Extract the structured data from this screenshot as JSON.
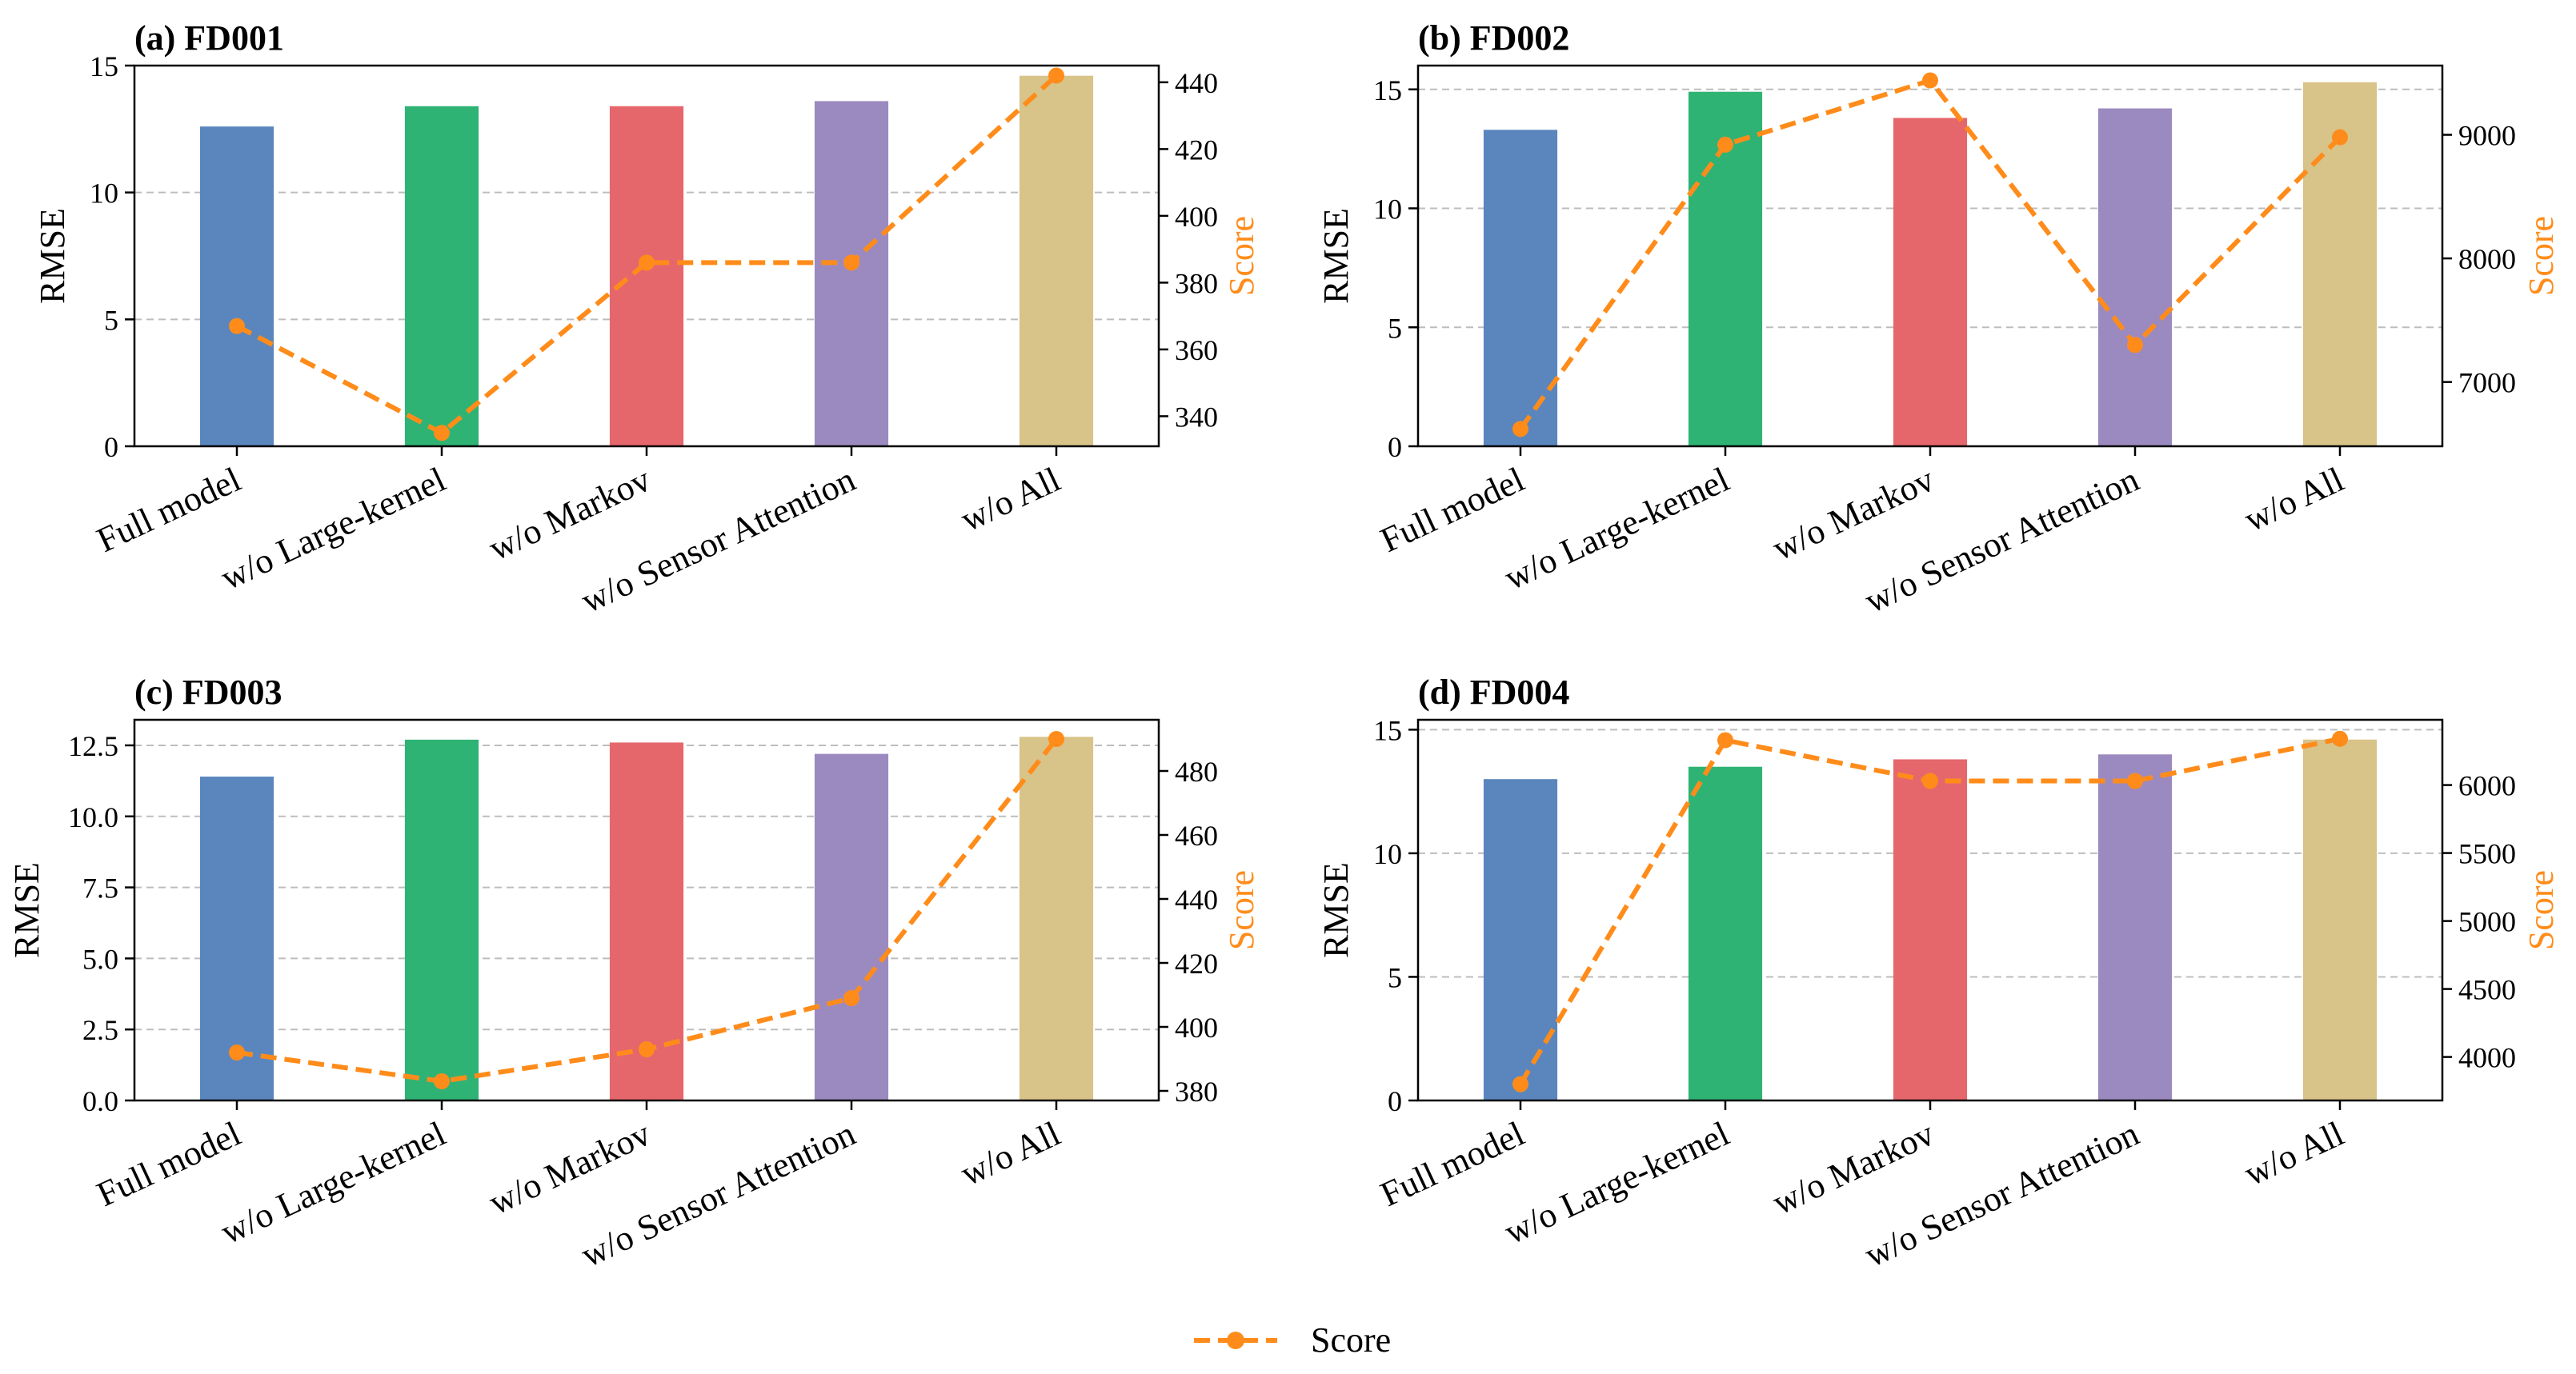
{
  "colors": {
    "bar_colors": [
      "#5A86BD",
      "#2FB374",
      "#E5676C",
      "#9B8AC0",
      "#D8C389"
    ],
    "score_line": "#FF8C1A",
    "grid": "#BDBDBD",
    "axis": "#000000"
  },
  "legend": {
    "label": "Score"
  },
  "chart_data": [
    {
      "type": "bar",
      "title": "(a) FD001",
      "categories": [
        "Full model",
        "w/o Large-kernel",
        "w/o Markov",
        "w/o Sensor Attention",
        "w/o All"
      ],
      "ylabel": "RMSE",
      "y2label": "Score",
      "ylim": [
        0,
        15
      ],
      "yticks": [
        0,
        5,
        10,
        15
      ],
      "ytick_labels": [
        "0",
        "5",
        "10",
        "15"
      ],
      "y2lim": [
        331,
        445
      ],
      "y2ticks": [
        340,
        360,
        380,
        400,
        420,
        440
      ],
      "y2tick_labels": [
        "340",
        "360",
        "380",
        "400",
        "420",
        "440"
      ],
      "series": [
        {
          "name": "RMSE",
          "kind": "bar",
          "values": [
            12.6,
            13.4,
            13.4,
            13.6,
            14.6
          ]
        },
        {
          "name": "Score",
          "kind": "line",
          "axis": "right",
          "values": [
            367,
            335,
            386,
            386,
            442
          ]
        }
      ]
    },
    {
      "type": "bar",
      "title": "(b) FD002",
      "categories": [
        "Full model",
        "w/o Large-kernel",
        "w/o Markov",
        "w/o Sensor Attention",
        "w/o All"
      ],
      "ylabel": "RMSE",
      "y2label": "Score",
      "ylim": [
        0,
        16
      ],
      "yticks": [
        0,
        5,
        10,
        15
      ],
      "ytick_labels": [
        "0",
        "5",
        "10",
        "15"
      ],
      "y2lim": [
        6480,
        9560
      ],
      "y2ticks": [
        7000,
        8000,
        9000
      ],
      "y2tick_labels": [
        "7000",
        "8000",
        "9000"
      ],
      "series": [
        {
          "name": "RMSE",
          "kind": "bar",
          "values": [
            13.3,
            14.9,
            13.8,
            14.2,
            15.3
          ]
        },
        {
          "name": "Score",
          "kind": "line",
          "axis": "right",
          "values": [
            6620,
            8920,
            9440,
            7300,
            8980
          ]
        }
      ]
    },
    {
      "type": "bar",
      "title": "(c) FD003",
      "categories": [
        "Full model",
        "w/o Large-kernel",
        "w/o Markov",
        "w/o Sensor Attention",
        "w/o All"
      ],
      "ylabel": "RMSE",
      "y2label": "Score",
      "ylim": [
        0,
        13.4
      ],
      "yticks": [
        0,
        2.5,
        5,
        7.5,
        10,
        12.5
      ],
      "ytick_labels": [
        "0.0",
        "2.5",
        "5.0",
        "7.5",
        "10.0",
        "12.5"
      ],
      "y2lim": [
        377,
        496
      ],
      "y2ticks": [
        380,
        400,
        420,
        440,
        460,
        480
      ],
      "y2tick_labels": [
        "380",
        "400",
        "420",
        "440",
        "460",
        "480"
      ],
      "series": [
        {
          "name": "RMSE",
          "kind": "bar",
          "values": [
            11.4,
            12.7,
            12.6,
            12.2,
            12.8
          ]
        },
        {
          "name": "Score",
          "kind": "line",
          "axis": "right",
          "values": [
            392,
            383,
            393,
            409,
            490
          ]
        }
      ]
    },
    {
      "type": "bar",
      "title": "(d) FD004",
      "categories": [
        "Full model",
        "w/o Large-kernel",
        "w/o Markov",
        "w/o Sensor Attention",
        "w/o All"
      ],
      "ylabel": "RMSE",
      "y2label": "Score",
      "ylim": [
        0,
        15.4
      ],
      "yticks": [
        0,
        5,
        10,
        15
      ],
      "ytick_labels": [
        "0",
        "5",
        "10",
        "15"
      ],
      "y2lim": [
        3680,
        6480
      ],
      "y2ticks": [
        4000,
        4500,
        5000,
        5500,
        6000
      ],
      "y2tick_labels": [
        "4000",
        "4500",
        "5000",
        "5500",
        "6000"
      ],
      "series": [
        {
          "name": "RMSE",
          "kind": "bar",
          "values": [
            13.0,
            13.5,
            13.8,
            14.0,
            14.6
          ]
        },
        {
          "name": "Score",
          "kind": "line",
          "axis": "right",
          "values": [
            3800,
            6330,
            6030,
            6030,
            6340
          ]
        }
      ]
    }
  ]
}
